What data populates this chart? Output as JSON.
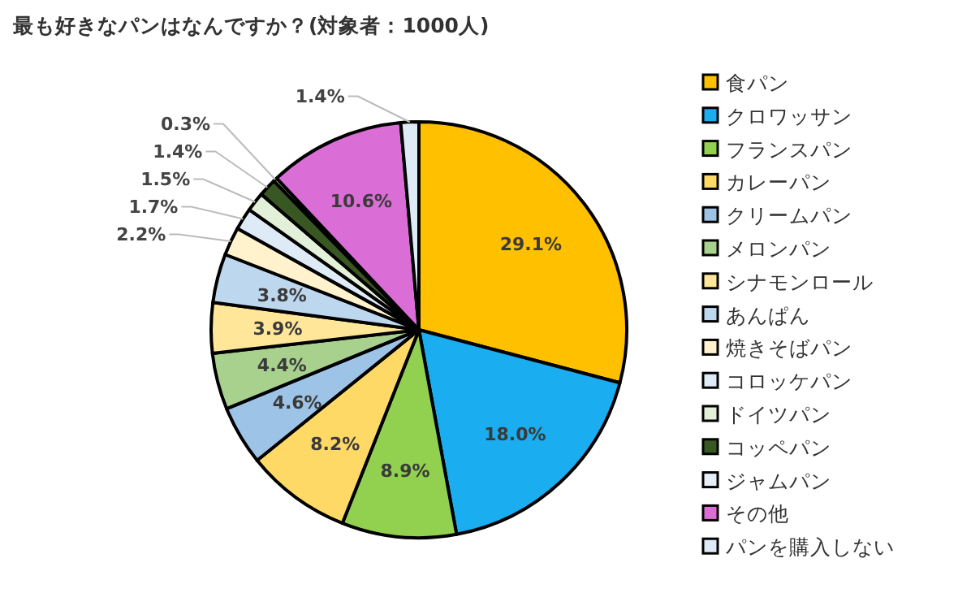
{
  "chart_data": {
    "type": "pie",
    "title": "最も好きなパンはなんですか？(対象者：1000人)",
    "categories": [
      "食パン",
      "クロワッサン",
      "フランスパン",
      "カレーパン",
      "クリームパン",
      "メロンパン",
      "シナモンロール",
      "あんぱん",
      "焼きそばパン",
      "コロッケパン",
      "ドイツパン",
      "コッペパン",
      "ジャムパン",
      "その他",
      "パンを購入しない"
    ],
    "values": [
      29.1,
      18.0,
      8.9,
      8.2,
      4.6,
      4.4,
      3.9,
      3.8,
      2.2,
      1.7,
      1.5,
      1.4,
      0.3,
      10.6,
      1.4
    ],
    "colors": [
      "#ffc000",
      "#1aadef",
      "#92d050",
      "#ffd966",
      "#9dc3e6",
      "#a9d18e",
      "#ffe699",
      "#bdd7ee",
      "#fff2cc",
      "#deebf7",
      "#e2f0d9",
      "#385723",
      "#e7eef5",
      "#da6ed6",
      "#deebf7"
    ],
    "value_labels": [
      "29.1%",
      "18.0%",
      "8.9%",
      "8.2%",
      "4.6%",
      "4.4%",
      "3.9%",
      "3.8%",
      "2.2%",
      "1.7%",
      "1.5%",
      "1.4%",
      "0.3%",
      "10.6%",
      "1.4%"
    ],
    "legend": "right"
  }
}
